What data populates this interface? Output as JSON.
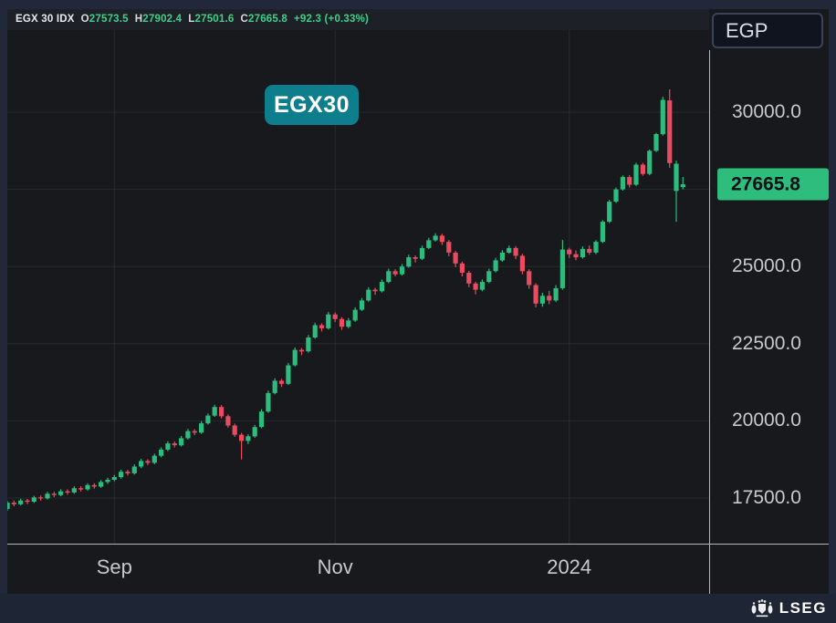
{
  "header": {
    "instrument": "EGX 30 IDX",
    "open_label": "O",
    "open": "27573.5",
    "high_label": "H",
    "high": "27902.4",
    "low_label": "L",
    "low": "27501.6",
    "close_label": "C",
    "close": "27665.8",
    "change": "+92.3 (+0.33%)"
  },
  "series_badge": "EGX30",
  "currency_selector": "EGP",
  "price_axis": {
    "last_price_label": "27665.8"
  },
  "footer": {
    "brand": "LSEG"
  },
  "colors": {
    "up": "#2cbc7e",
    "down": "#ea4b5f",
    "series_badge_bg": "#0e7d8c",
    "last_price_bg": "#2ebd7d",
    "frame": "#212839",
    "chart_bg": "#17191d",
    "grid": "rgba(255,255,255,0.07)",
    "axis_line": "#b2b5bc",
    "axis_text": "#c7c9ce",
    "header_value_green": "#3ecf8a"
  },
  "chart_data": {
    "type": "candlestick",
    "title": "EGX 30 IDX daily candlesticks",
    "currency": "EGP",
    "last_price": 27665.8,
    "ohlc_current": {
      "open": 27573.5,
      "high": 27902.4,
      "low": 27501.6,
      "close": 27665.8,
      "change": 92.3,
      "change_pct": 0.33
    },
    "y_axis": {
      "tick_labels": [
        "30000.0",
        "25000.0",
        "22500.0",
        "20000.0",
        "17500.0"
      ],
      "tick_values": [
        30000,
        25000,
        22500,
        20000,
        17500
      ],
      "grid_values": [
        30000,
        27500,
        25000,
        22500,
        20000,
        17500
      ],
      "range": [
        16000,
        31800
      ]
    },
    "x_axis": {
      "labels": [
        {
          "label": "Sep",
          "index": 16
        },
        {
          "label": "Nov",
          "index": 49
        },
        {
          "label": "2024",
          "index": 84
        }
      ]
    },
    "candles": [
      [
        17150,
        17400,
        17090,
        17350
      ],
      [
        17350,
        17420,
        17230,
        17300
      ],
      [
        17300,
        17480,
        17260,
        17420
      ],
      [
        17420,
        17470,
        17300,
        17380
      ],
      [
        17380,
        17570,
        17340,
        17520
      ],
      [
        17520,
        17580,
        17420,
        17490
      ],
      [
        17490,
        17700,
        17450,
        17640
      ],
      [
        17640,
        17700,
        17530,
        17600
      ],
      [
        17600,
        17780,
        17560,
        17720
      ],
      [
        17720,
        17780,
        17610,
        17680
      ],
      [
        17680,
        17880,
        17640,
        17820
      ],
      [
        17820,
        17880,
        17710,
        17780
      ],
      [
        17780,
        17980,
        17740,
        17920
      ],
      [
        17920,
        17980,
        17800,
        17870
      ],
      [
        17870,
        18080,
        17830,
        18020
      ],
      [
        18020,
        18160,
        17960,
        18090
      ],
      [
        18090,
        18250,
        18040,
        18180
      ],
      [
        18180,
        18420,
        18130,
        18350
      ],
      [
        18350,
        18410,
        18230,
        18300
      ],
      [
        18300,
        18590,
        18260,
        18520
      ],
      [
        18520,
        18770,
        18470,
        18700
      ],
      [
        18700,
        18760,
        18570,
        18640
      ],
      [
        18640,
        18940,
        18600,
        18870
      ],
      [
        18870,
        19140,
        18820,
        19070
      ],
      [
        19070,
        19340,
        19020,
        19270
      ],
      [
        19270,
        19330,
        19140,
        19210
      ],
      [
        19210,
        19510,
        19170,
        19440
      ],
      [
        19440,
        19740,
        19390,
        19670
      ],
      [
        19670,
        19730,
        19540,
        19620
      ],
      [
        19620,
        19990,
        19580,
        19920
      ],
      [
        19920,
        20240,
        19880,
        20170
      ],
      [
        20170,
        20520,
        20130,
        20450
      ],
      [
        20450,
        20510,
        20080,
        20150
      ],
      [
        20150,
        20210,
        19780,
        19850
      ],
      [
        19850,
        19910,
        19480,
        19550
      ],
      [
        19550,
        19610,
        18750,
        19350
      ],
      [
        19350,
        19570,
        19250,
        19500
      ],
      [
        19500,
        19870,
        19450,
        19800
      ],
      [
        19800,
        20380,
        19760,
        20300
      ],
      [
        20300,
        20980,
        20260,
        20900
      ],
      [
        20900,
        21380,
        20860,
        21300
      ],
      [
        21300,
        21360,
        21100,
        21200
      ],
      [
        21200,
        21880,
        21160,
        21800
      ],
      [
        21800,
        22380,
        21760,
        22300
      ],
      [
        22300,
        22360,
        22130,
        22250
      ],
      [
        22250,
        22780,
        22210,
        22700
      ],
      [
        22700,
        23180,
        22660,
        23100
      ],
      [
        23100,
        23160,
        22900,
        23000
      ],
      [
        23000,
        23530,
        22960,
        23450
      ],
      [
        23450,
        23510,
        23200,
        23300
      ],
      [
        23300,
        23360,
        22950,
        23050
      ],
      [
        23050,
        23330,
        23000,
        23250
      ],
      [
        23250,
        23680,
        23210,
        23600
      ],
      [
        23600,
        23980,
        23560,
        23900
      ],
      [
        23900,
        24330,
        23860,
        24250
      ],
      [
        24250,
        24310,
        24080,
        24200
      ],
      [
        24200,
        24580,
        24160,
        24500
      ],
      [
        24500,
        24930,
        24460,
        24850
      ],
      [
        24850,
        24910,
        24680,
        24750
      ],
      [
        24750,
        25080,
        24710,
        25000
      ],
      [
        25000,
        25380,
        24960,
        25300
      ],
      [
        25300,
        25360,
        25130,
        25250
      ],
      [
        25250,
        25680,
        25210,
        25600
      ],
      [
        25600,
        25930,
        25560,
        25850
      ],
      [
        25850,
        26080,
        25810,
        26000
      ],
      [
        26000,
        26060,
        25700,
        25800
      ],
      [
        25800,
        25860,
        25330,
        25450
      ],
      [
        25450,
        25510,
        24980,
        25100
      ],
      [
        25100,
        25160,
        24680,
        24800
      ],
      [
        24800,
        24860,
        24330,
        24450
      ],
      [
        24450,
        24510,
        24100,
        24250
      ],
      [
        24250,
        24580,
        24200,
        24500
      ],
      [
        24500,
        24930,
        24460,
        24850
      ],
      [
        24850,
        25280,
        24810,
        25200
      ],
      [
        25200,
        25530,
        25160,
        25450
      ],
      [
        25450,
        25680,
        25410,
        25600
      ],
      [
        25600,
        25660,
        25240,
        25350
      ],
      [
        25350,
        25410,
        24750,
        24850
      ],
      [
        24850,
        24910,
        24280,
        24400
      ],
      [
        24400,
        24460,
        23680,
        23800
      ],
      [
        23800,
        24150,
        23700,
        24050
      ],
      [
        24050,
        24210,
        23780,
        23900
      ],
      [
        23900,
        24400,
        23850,
        24300
      ],
      [
        24300,
        25860,
        24250,
        25550
      ],
      [
        25550,
        25610,
        25280,
        25400
      ],
      [
        25400,
        25520,
        25200,
        25300
      ],
      [
        25300,
        25650,
        25260,
        25570
      ],
      [
        25570,
        25680,
        25380,
        25450
      ],
      [
        25450,
        25850,
        25400,
        25800
      ],
      [
        25800,
        26500,
        25760,
        26450
      ],
      [
        26450,
        27160,
        26410,
        27100
      ],
      [
        27100,
        27560,
        27060,
        27500
      ],
      [
        27500,
        27950,
        27460,
        27900
      ],
      [
        27900,
        27960,
        27560,
        27650
      ],
      [
        27650,
        28360,
        27610,
        28300
      ],
      [
        28300,
        28360,
        27940,
        28000
      ],
      [
        28000,
        28790,
        27960,
        28750
      ],
      [
        28750,
        29330,
        28710,
        29290
      ],
      [
        29290,
        30500,
        29240,
        30400
      ],
      [
        30380,
        30740,
        28200,
        28350
      ],
      [
        27450,
        28430,
        26450,
        28330
      ],
      [
        27573.5,
        27902.4,
        27501.6,
        27665.8
      ]
    ]
  }
}
